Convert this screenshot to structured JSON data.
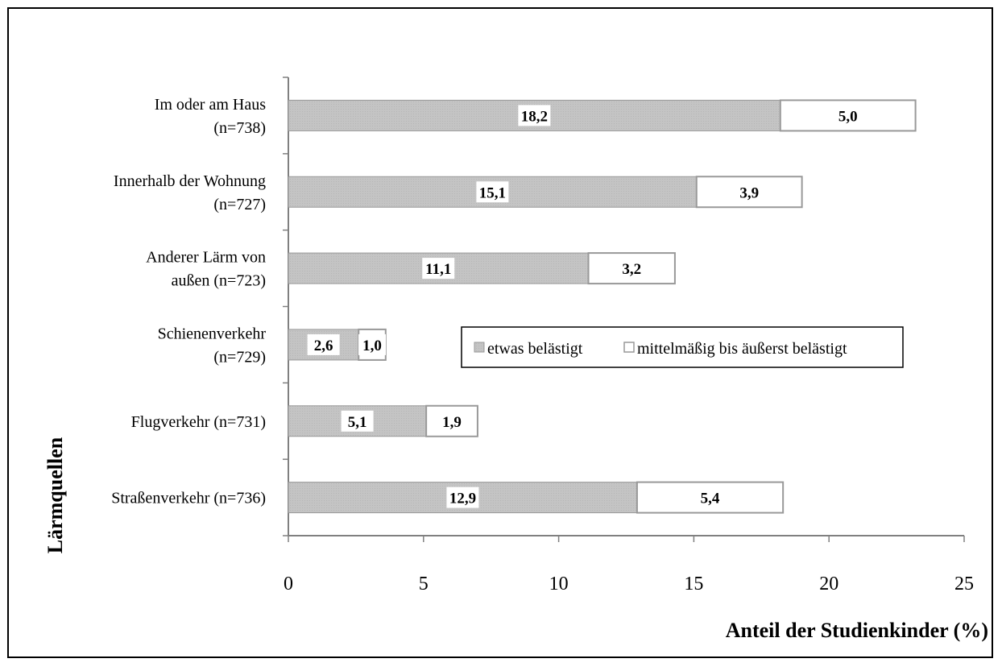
{
  "chart_data": {
    "type": "bar",
    "orientation": "horizontal",
    "stacked": true,
    "categories": [
      [
        "Im oder am Haus",
        "(n=738)"
      ],
      [
        "Innerhalb der Wohnung",
        "(n=727)"
      ],
      [
        "Anderer Lärm von",
        "außen (n=723)"
      ],
      [
        "Schienenverkehr",
        "(n=729)"
      ],
      [
        "Flugverkehr (n=731)"
      ],
      [
        "Straßenverkehr (n=736)"
      ]
    ],
    "series": [
      {
        "name": "etwas belästigt",
        "values": [
          18.2,
          15.1,
          11.1,
          2.6,
          5.1,
          12.9
        ],
        "labels": [
          "18,2",
          "15,1",
          "11,1",
          "2,6",
          "5,1",
          "12,9"
        ]
      },
      {
        "name": "mittelmäßig bis äußerst belästigt",
        "values": [
          5.0,
          3.9,
          3.2,
          1.0,
          1.9,
          5.4
        ],
        "labels": [
          "5,0",
          "3,9",
          "3,2",
          "1,0",
          "1,9",
          "5,4"
        ]
      }
    ],
    "xlim": [
      0,
      25
    ],
    "xticks": [
      "0",
      "5",
      "10",
      "15",
      "20",
      "25"
    ],
    "xlabel": "Anteil der Studienkinder (%)",
    "ylabel": "Lärmquellen",
    "legend_position": "inside, center-right",
    "grid": false,
    "colors": {
      "etwas": "#c4c4c4",
      "mittel": "#ffffff",
      "edge": "#999999",
      "axis": "#808080",
      "frame": "#000000"
    }
  }
}
